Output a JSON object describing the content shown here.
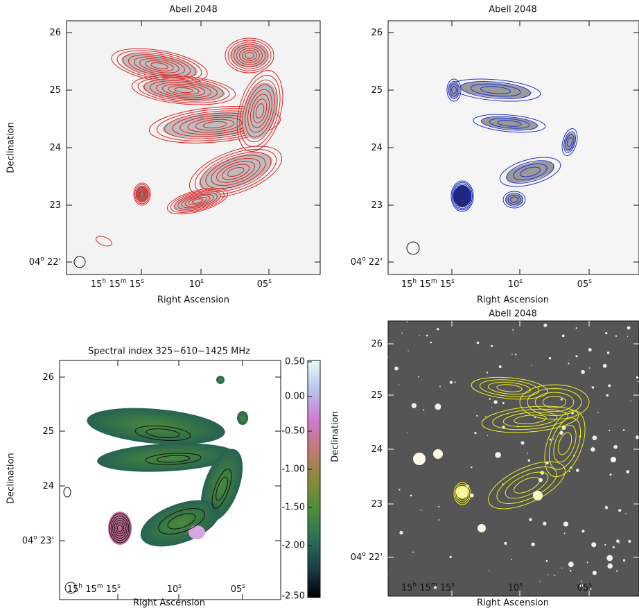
{
  "panels": [
    {
      "title": "Abell 2048",
      "x_axis_label": "Right Ascension",
      "y_axis_label": "Declination",
      "y_ticks": [
        [
          "26"
        ],
        [
          "25"
        ],
        [
          "24"
        ],
        [
          "23"
        ],
        [
          "04",
          "o",
          " 22'"
        ]
      ],
      "x_ticks": [
        [
          "15",
          "h",
          " 15",
          "m",
          " 15",
          "s"
        ],
        [
          "10",
          "s"
        ],
        [
          "05",
          "s"
        ]
      ]
    },
    {
      "title": "Abell 2048",
      "x_axis_label": "Right Ascension",
      "y_ticks": [
        [
          "26"
        ],
        [
          "25"
        ],
        [
          "24"
        ],
        [
          "23"
        ],
        [
          "04",
          "o",
          " 22'"
        ]
      ],
      "x_ticks": [
        [
          "15",
          "h",
          " 15",
          "m",
          " 15",
          "s"
        ],
        [
          "10",
          "s"
        ],
        [
          "05",
          "s"
        ]
      ]
    },
    {
      "title": "Spectral index 325−610−1425 MHz",
      "x_axis_label": "Right Ascension",
      "y_axis_label": "Declination",
      "y_ticks": [
        [
          "26"
        ],
        [
          "25"
        ],
        [
          "24"
        ],
        [
          "04",
          "o",
          " 23'"
        ]
      ],
      "x_ticks": [
        [
          "15",
          "h",
          " 15",
          "m",
          " 15",
          "s"
        ],
        [
          "10",
          "s"
        ],
        [
          "05",
          "s"
        ]
      ]
    },
    {
      "title": "Abell 2048",
      "x_axis_label": "Right Ascension",
      "y_axis_label": "Declination",
      "y_ticks": [
        [
          "26"
        ],
        [
          "25"
        ],
        [
          "24"
        ],
        [
          "23"
        ],
        [
          "04",
          "o",
          " 22'"
        ]
      ],
      "x_ticks": [
        [
          "15",
          "h",
          " 15",
          "m",
          " 15",
          "s"
        ],
        [
          "10",
          "s"
        ],
        [
          "05",
          "s"
        ]
      ]
    }
  ],
  "colorbar": {
    "ticks": [
      "0.50",
      "0.00",
      "-0.50",
      "-1.00",
      "-1.50",
      "-2.00",
      "-2.50"
    ]
  }
}
